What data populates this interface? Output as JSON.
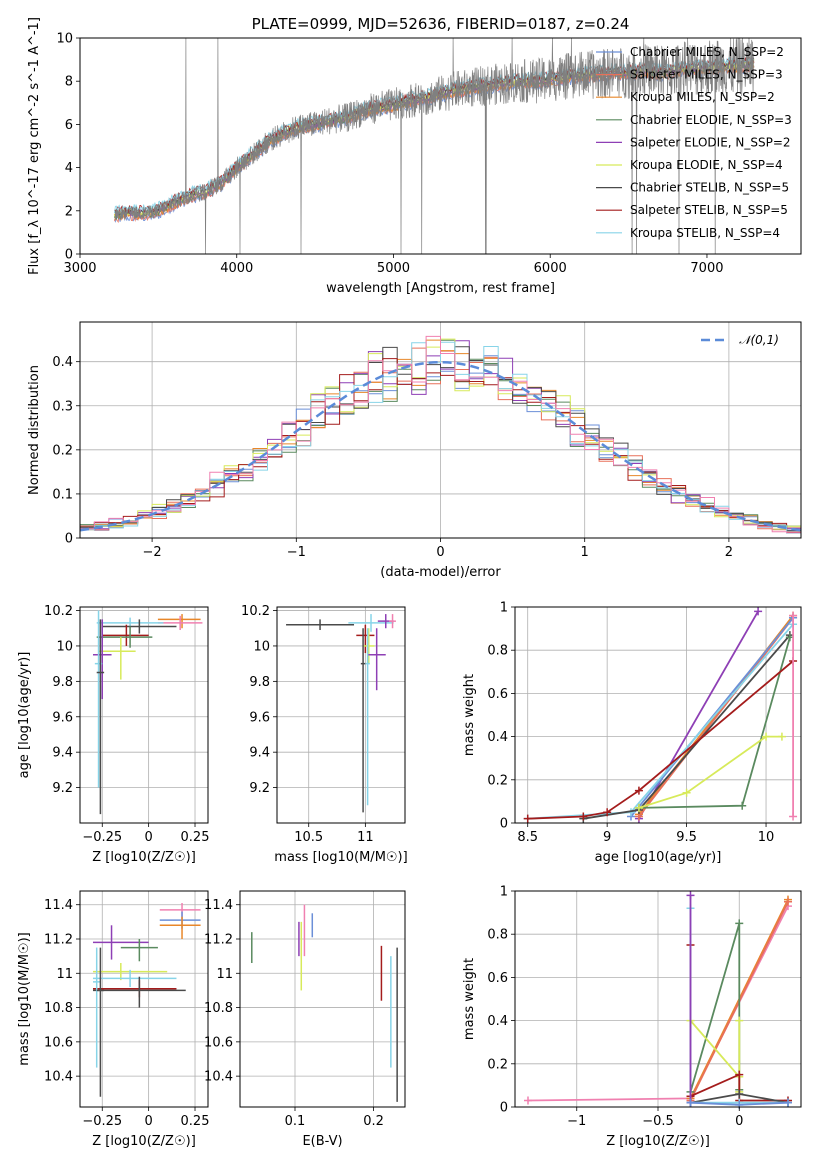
{
  "chart_data": [
    {
      "id": "spectrum",
      "type": "line",
      "title": "PLATE=0999, MJD=52636, FIBERID=0187, z=0.24",
      "xlabel": "wavelength [Angstrom, rest frame]",
      "ylabel": "Flux [f_λ 10^-17 erg cm^-2 s^-1 A^-1]",
      "xlim": [
        3000,
        7600
      ],
      "ylim": [
        0,
        10
      ],
      "xticks": [
        3000,
        4000,
        5000,
        6000,
        7000
      ],
      "yticks": [
        0,
        2,
        4,
        6,
        8,
        10
      ],
      "grid": false,
      "legend": "upper-right",
      "data_color": "#808080",
      "data_x": [
        3220,
        3300,
        3400,
        3500,
        3600,
        3700,
        3800,
        3900,
        4000,
        4100,
        4200,
        4300,
        4400,
        4500,
        4600,
        4700,
        4800,
        4900,
        5000,
        5100,
        5200,
        5300,
        5400,
        5500,
        5600,
        5700,
        5800,
        5900,
        6000,
        6100,
        6200,
        6300,
        6400,
        6500,
        6600,
        6700,
        6800,
        6900,
        7000,
        7100,
        7200,
        7300
      ],
      "data_y": [
        1.8,
        1.9,
        1.9,
        2.0,
        2.4,
        2.7,
        2.9,
        3.3,
        4.0,
        4.6,
        5.2,
        5.6,
        5.9,
        6.0,
        6.2,
        6.3,
        6.6,
        6.8,
        6.9,
        7.1,
        7.2,
        7.4,
        7.6,
        7.7,
        7.8,
        7.9,
        8.0,
        8.0,
        8.1,
        8.2,
        8.3,
        8.3,
        8.4,
        8.4,
        8.5,
        8.4,
        8.5,
        8.6,
        8.6,
        8.7,
        8.7,
        8.8
      ],
      "series": [
        {
          "name": "Chabrier MILES, N_SSP=2",
          "color": "#6b8fd8"
        },
        {
          "name": "Salpeter MILES, N_SSP=3",
          "color": "#e8705a"
        },
        {
          "name": "Kroupa MILES, N_SSP=2",
          "color": "#e8872a"
        },
        {
          "name": "Chabrier ELODIE, N_SSP=3",
          "color": "#5a8a5f"
        },
        {
          "name": "Salpeter ELODIE, N_SSP=2",
          "color": "#8e3fb5"
        },
        {
          "name": "Kroupa ELODIE, N_SSP=4",
          "color": "#d7ea5a"
        },
        {
          "name": "Chabrier STELIB, N_SSP=5",
          "color": "#4a4a4a"
        },
        {
          "name": "Salpeter STELIB, N_SSP=5",
          "color": "#a41c1c"
        },
        {
          "name": "Kroupa STELIB, N_SSP=4",
          "color": "#87d4e8"
        }
      ]
    },
    {
      "id": "residuals",
      "type": "histogram",
      "xlabel": "(data-model)/error",
      "ylabel": "Normed distribution",
      "xlim": [
        -2.5,
        2.5
      ],
      "ylim": [
        0,
        0.49
      ],
      "xticks": [
        -2,
        -1,
        0,
        1,
        2
      ],
      "yticks": [
        0.0,
        0.1,
        0.2,
        0.3,
        0.4
      ],
      "grid": true,
      "legend": "upper-right",
      "legend_label": "𝒩(0,1)",
      "gauss_color": "#5b8bd8",
      "bin_start": -2.5,
      "bin_width": 0.1,
      "hist_colors": [
        "#6b8fd8",
        "#e8705a",
        "#e8872a",
        "#5a8a5f",
        "#8e3fb5",
        "#d7ea5a",
        "#4a4a4a",
        "#a41c1c",
        "#87d4e8",
        "#f080b0"
      ]
    },
    {
      "id": "age_vs_Z",
      "type": "errorbar",
      "xlabel": "Z [log10(Z/Z☉)]",
      "ylabel": "age  [log10(age/yr)]",
      "xlim": [
        -0.37,
        0.32
      ],
      "ylim": [
        9.0,
        10.22
      ],
      "xticks": [
        -0.25,
        0.0,
        0.25
      ],
      "yticks": [
        9.2,
        9.4,
        9.6,
        9.8,
        10.0,
        10.2
      ],
      "grid": true,
      "points": [
        {
          "x": 0.18,
          "y": 10.15,
          "xerr": [
            0.13,
            0.1
          ],
          "yerr": [
            0.05,
            0.03
          ],
          "color": "#e8872a"
        },
        {
          "x": 0.17,
          "y": 10.13,
          "xerr": [
            0.12,
            0.12
          ],
          "yerr": [
            0.04,
            0.04
          ],
          "color": "#f080b0"
        },
        {
          "x": -0.1,
          "y": 10.13,
          "xerr": [
            0.18,
            0.18
          ],
          "yerr": [
            0.03,
            0.03
          ],
          "color": "#87d4e8"
        },
        {
          "x": -0.05,
          "y": 10.11,
          "xerr": [
            0.2,
            0.2
          ],
          "yerr": [
            0.04,
            0.04
          ],
          "color": "#4a4a4a"
        },
        {
          "x": -0.12,
          "y": 10.06,
          "xerr": [
            0.13,
            0.12
          ],
          "yerr": [
            0.06,
            0.06
          ],
          "color": "#a41c1c"
        },
        {
          "x": -0.1,
          "y": 10.05,
          "xerr": [
            0.18,
            0.12
          ],
          "yerr": [
            0.06,
            0.06
          ],
          "color": "#5a8a5f"
        },
        {
          "x": -0.15,
          "y": 9.97,
          "xerr": [
            0.12,
            0.08
          ],
          "yerr": [
            0.16,
            0.08
          ],
          "color": "#d7ea5a"
        },
        {
          "x": -0.25,
          "y": 9.95,
          "xerr": [
            0.05,
            0.05
          ],
          "yerr": [
            0.25,
            0.2
          ],
          "color": "#8e3fb5"
        },
        {
          "x": -0.27,
          "y": 9.9,
          "xerr": [
            0.02,
            0.02
          ],
          "yerr": [
            0.7,
            0.3
          ],
          "color": "#87d4e8"
        },
        {
          "x": -0.26,
          "y": 9.85,
          "xerr": [
            0.02,
            0.02
          ],
          "yerr": [
            0.8,
            0.3
          ],
          "color": "#4a4a4a"
        }
      ]
    },
    {
      "id": "age_vs_mass",
      "type": "errorbar",
      "xlabel": "mass [log10(M/M☉)]",
      "ylabel": "",
      "xlim": [
        10.22,
        11.35
      ],
      "ylim": [
        9.0,
        10.22
      ],
      "xticks": [
        10.5,
        11.0
      ],
      "yticks": [
        9.2,
        9.4,
        9.6,
        9.8,
        10.0,
        10.2
      ],
      "grid": true,
      "points": [
        {
          "x": 10.6,
          "y": 10.12,
          "xerr": [
            0.3,
            0.3
          ],
          "yerr": [
            0.03,
            0.03
          ],
          "color": "#4a4a4a"
        },
        {
          "x": 11.05,
          "y": 10.13,
          "xerr": [
            0.2,
            0.2
          ],
          "yerr": [
            0.05,
            0.05
          ],
          "color": "#87d4e8"
        },
        {
          "x": 11.18,
          "y": 10.14,
          "xerr": [
            0.07,
            0.07
          ],
          "yerr": [
            0.04,
            0.04
          ],
          "color": "#8e3fb5"
        },
        {
          "x": 11.24,
          "y": 10.14,
          "xerr": [
            0.03,
            0.03
          ],
          "yerr": [
            0.04,
            0.04
          ],
          "color": "#f080b0"
        },
        {
          "x": 11.0,
          "y": 10.06,
          "xerr": [
            0.08,
            0.08
          ],
          "yerr": [
            0.1,
            0.06
          ],
          "color": "#a41c1c"
        },
        {
          "x": 11.03,
          "y": 10.0,
          "xerr": [
            0.05,
            0.05
          ],
          "yerr": [
            0.1,
            0.1
          ],
          "color": "#d7ea5a"
        },
        {
          "x": 11.1,
          "y": 9.95,
          "xerr": [
            0.08,
            0.08
          ],
          "yerr": [
            0.2,
            0.15
          ],
          "color": "#8e3fb5"
        },
        {
          "x": 10.98,
          "y": 9.9,
          "xerr": [
            0.02,
            0.02
          ],
          "yerr": [
            0.84,
            0.2
          ],
          "color": "#4a4a4a"
        },
        {
          "x": 11.02,
          "y": 9.9,
          "xerr": [
            0.02,
            0.02
          ],
          "yerr": [
            0.8,
            0.2
          ],
          "color": "#87d4e8"
        }
      ]
    },
    {
      "id": "mw_vs_age",
      "type": "line",
      "xlabel": "age  [log10(age/yr)]",
      "ylabel": "mass weight",
      "xlim": [
        8.42,
        10.22
      ],
      "ylim": [
        0.0,
        1.0
      ],
      "xticks": [
        8.5,
        9.0,
        9.5,
        10.0
      ],
      "yticks": [
        0.0,
        0.2,
        0.4,
        0.6,
        0.8,
        1.0
      ],
      "grid": true,
      "series": [
        {
          "color": "#8e3fb5",
          "x": [
            9.2,
            9.95
          ],
          "y": [
            0.02,
            0.98
          ]
        },
        {
          "color": "#e8872a",
          "x": [
            9.2,
            10.17
          ],
          "y": [
            0.04,
            0.96
          ]
        },
        {
          "color": "#e8705a",
          "x": [
            9.2,
            10.17
          ],
          "y": [
            0.03,
            0.95
          ]
        },
        {
          "color": "#6b8fd8",
          "x": [
            9.15,
            10.17
          ],
          "y": [
            0.03,
            0.95
          ]
        },
        {
          "color": "#87d4e8",
          "x": [
            8.5,
            9.15,
            10.17
          ],
          "y": [
            0.02,
            0.05,
            0.92
          ]
        },
        {
          "color": "#4a4a4a",
          "x": [
            8.85,
            9.2,
            10.15
          ],
          "y": [
            0.02,
            0.06,
            0.87
          ]
        },
        {
          "color": "#5a8a5f",
          "x": [
            9.2,
            9.85,
            10.15
          ],
          "y": [
            0.07,
            0.08,
            0.86
          ]
        },
        {
          "color": "#a41c1c",
          "x": [
            8.5,
            8.85,
            9.0,
            9.2,
            10.17
          ],
          "y": [
            0.02,
            0.03,
            0.05,
            0.15,
            0.75
          ]
        },
        {
          "color": "#d7ea5a",
          "x": [
            9.2,
            9.5,
            10.0,
            10.1
          ],
          "y": [
            0.07,
            0.14,
            0.4,
            0.4
          ]
        },
        {
          "color": "#f080b0",
          "x": [
            10.17,
            10.17
          ],
          "y": [
            0.03,
            0.96
          ]
        }
      ]
    },
    {
      "id": "mass_vs_Z",
      "type": "errorbar",
      "xlabel": "Z [log10(Z/Z☉)]",
      "ylabel": "mass [log10(M/M☉)]",
      "xlim": [
        -0.37,
        0.32
      ],
      "ylim": [
        10.22,
        11.48
      ],
      "xticks": [
        -0.25,
        0.0,
        0.25
      ],
      "yticks": [
        10.4,
        10.6,
        10.8,
        11.0,
        11.2,
        11.4
      ],
      "grid": true,
      "points": [
        {
          "x": 0.18,
          "y": 11.37,
          "xerr": [
            0.12,
            0.1
          ],
          "yerr": [
            0.04,
            0.04
          ],
          "color": "#f080b0"
        },
        {
          "x": 0.18,
          "y": 11.31,
          "xerr": [
            0.12,
            0.1
          ],
          "yerr": [
            0.05,
            0.05
          ],
          "color": "#6b8fd8"
        },
        {
          "x": 0.18,
          "y": 11.28,
          "xerr": [
            0.12,
            0.1
          ],
          "yerr": [
            0.08,
            0.05
          ],
          "color": "#e8872a"
        },
        {
          "x": -0.2,
          "y": 11.18,
          "xerr": [
            0.1,
            0.2
          ],
          "yerr": [
            0.1,
            0.1
          ],
          "color": "#8e3fb5"
        },
        {
          "x": -0.05,
          "y": 11.15,
          "xerr": [
            0.1,
            0.1
          ],
          "yerr": [
            0.08,
            0.05
          ],
          "color": "#5a8a5f"
        },
        {
          "x": -0.15,
          "y": 11.01,
          "xerr": [
            0.15,
            0.25
          ],
          "yerr": [
            0.05,
            0.05
          ],
          "color": "#d7ea5a"
        },
        {
          "x": -0.1,
          "y": 10.97,
          "xerr": [
            0.2,
            0.25
          ],
          "yerr": [
            0.05,
            0.05
          ],
          "color": "#87d4e8"
        },
        {
          "x": -0.05,
          "y": 10.91,
          "xerr": [
            0.25,
            0.2
          ],
          "yerr": [
            0.05,
            0.05
          ],
          "color": "#a41c1c"
        },
        {
          "x": -0.05,
          "y": 10.9,
          "xerr": [
            0.25,
            0.25
          ],
          "yerr": [
            0.1,
            0.08
          ],
          "color": "#4a4a4a"
        },
        {
          "x": -0.28,
          "y": 10.95,
          "xerr": [
            0.02,
            0.02
          ],
          "yerr": [
            0.5,
            0.2
          ],
          "color": "#87d4e8"
        },
        {
          "x": -0.26,
          "y": 10.9,
          "xerr": [
            0.02,
            0.02
          ],
          "yerr": [
            0.62,
            0.25
          ],
          "color": "#4a4a4a"
        }
      ]
    },
    {
      "id": "mass_vs_ebv",
      "type": "errorbar",
      "xlabel": "E(B-V)",
      "ylabel": "",
      "xlim": [
        0.03,
        0.24
      ],
      "ylim": [
        10.22,
        11.48
      ],
      "xticks": [
        0.1,
        0.2
      ],
      "yticks": [
        10.4,
        10.6,
        10.8,
        11.0,
        11.2,
        11.4
      ],
      "grid": true,
      "points": [
        {
          "x": 0.045,
          "y": 11.15,
          "xerr": [
            0,
            0
          ],
          "yerr": [
            0.09,
            0.09
          ],
          "color": "#5a8a5f"
        },
        {
          "x": 0.105,
          "y": 11.2,
          "xerr": [
            0,
            0
          ],
          "yerr": [
            0.1,
            0.1
          ],
          "color": "#8e3fb5"
        },
        {
          "x": 0.108,
          "y": 11.1,
          "xerr": [
            0,
            0
          ],
          "yerr": [
            0.2,
            0.2
          ],
          "color": "#d7ea5a"
        },
        {
          "x": 0.112,
          "y": 11.25,
          "xerr": [
            0,
            0
          ],
          "yerr": [
            0.15,
            0.15
          ],
          "color": "#f080b0"
        },
        {
          "x": 0.122,
          "y": 11.28,
          "xerr": [
            0,
            0
          ],
          "yerr": [
            0.07,
            0.07
          ],
          "color": "#6b8fd8"
        },
        {
          "x": 0.21,
          "y": 11.0,
          "xerr": [
            0,
            0
          ],
          "yerr": [
            0.16,
            0.16
          ],
          "color": "#a41c1c"
        },
        {
          "x": 0.222,
          "y": 10.75,
          "xerr": [
            0,
            0
          ],
          "yerr": [
            0.3,
            0.35
          ],
          "color": "#87d4e8"
        },
        {
          "x": 0.23,
          "y": 10.7,
          "xerr": [
            0,
            0
          ],
          "yerr": [
            0.45,
            0.45
          ],
          "color": "#4a4a4a"
        }
      ]
    },
    {
      "id": "mw_vs_Z",
      "type": "line",
      "xlabel": "Z [log10(Z/Z☉)]",
      "ylabel": "mass weight",
      "xlim": [
        -1.38,
        0.38
      ],
      "ylim": [
        0.0,
        1.0
      ],
      "xticks": [
        -1.0,
        -0.5,
        0.0
      ],
      "yticks": [
        0.0,
        0.2,
        0.4,
        0.6,
        0.8,
        1.0
      ],
      "grid": true,
      "series": [
        {
          "color": "#f080b0",
          "x": [
            -1.3,
            -0.3,
            0.3
          ],
          "y": [
            0.03,
            0.04,
            0.93
          ]
        },
        {
          "color": "#e8872a",
          "x": [
            -0.3,
            0.3
          ],
          "y": [
            0.04,
            0.96
          ]
        },
        {
          "color": "#e8705a",
          "x": [
            -0.3,
            0.3
          ],
          "y": [
            0.03,
            0.95
          ]
        },
        {
          "color": "#5a8a5f",
          "x": [
            -0.3,
            0.0,
            0.0
          ],
          "y": [
            0.07,
            0.85,
            0.08
          ]
        },
        {
          "color": "#d7ea5a",
          "x": [
            -0.3,
            0.0,
            0.0,
            0.0
          ],
          "y": [
            0.4,
            0.14,
            0.4,
            0.07
          ]
        },
        {
          "color": "#a41c1c",
          "x": [
            -0.3,
            -0.3,
            0.0,
            0.0,
            0.3
          ],
          "y": [
            0.75,
            0.05,
            0.15,
            0.03,
            0.03
          ]
        },
        {
          "color": "#4a4a4a",
          "x": [
            -0.3,
            0.0,
            0.3
          ],
          "y": [
            0.02,
            0.06,
            0.02
          ]
        },
        {
          "color": "#87d4e8",
          "x": [
            -0.3,
            -0.3,
            0.0,
            0.3
          ],
          "y": [
            0.92,
            0.02,
            0.02,
            0.02
          ]
        },
        {
          "color": "#8e3fb5",
          "x": [
            -0.3,
            -0.3
          ],
          "y": [
            0.98,
            0.02
          ]
        },
        {
          "color": "#6b8fd8",
          "x": [
            -0.3,
            0.0,
            0.3
          ],
          "y": [
            0.02,
            0.01,
            0.02
          ]
        }
      ]
    }
  ]
}
